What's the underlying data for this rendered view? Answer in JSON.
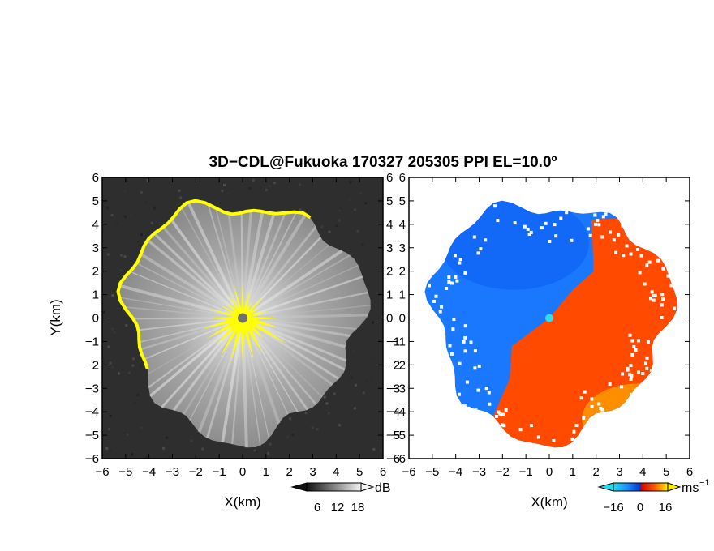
{
  "title": "3D−CDL@Fukuoka 170327 205305 PPI EL=10.0º",
  "chart_data": [
    {
      "type": "heatmap",
      "panel": "reflectivity",
      "xlabel": "X(km)",
      "ylabel": "Y(km)",
      "xlim": [
        -6,
        6
      ],
      "ylim": [
        -6,
        6
      ],
      "x_ticks": [
        "−6",
        "−5",
        "−4",
        "−3",
        "−2",
        "−1",
        "0",
        "1",
        "2",
        "3",
        "4",
        "5",
        "6"
      ],
      "y_ticks": [
        "6",
        "5",
        "4",
        "3",
        "2",
        "1",
        "0",
        "−1",
        "−2",
        "−3",
        "−4",
        "−5",
        "−6"
      ],
      "colorbar": {
        "unit": "dB",
        "ticks": [
          "6",
          "12",
          "18"
        ],
        "range": [
          0,
          24
        ]
      },
      "colors": {
        "background": "#2e2e2e",
        "echo": "#8a8a8a",
        "highlight": "#ffff00",
        "center": "#707070"
      }
    },
    {
      "type": "heatmap",
      "panel": "doppler velocity",
      "xlabel": "X(km)",
      "ylabel": "",
      "xlim": [
        -6,
        6
      ],
      "ylim": [
        -6,
        6
      ],
      "x_ticks": [
        "−6",
        "−5",
        "−4",
        "−3",
        "−2",
        "−1",
        "0",
        "1",
        "2",
        "3",
        "4",
        "5",
        "6"
      ],
      "y_ticks": [
        "6",
        "5",
        "4",
        "3",
        "2",
        "1",
        "0",
        "−1",
        "−2",
        "−3",
        "−4",
        "−5",
        "−6"
      ],
      "colorbar": {
        "unit": "ms",
        "unit_sup": "−1",
        "ticks": [
          "−16",
          "0",
          "16"
        ],
        "range": [
          -24,
          24
        ]
      },
      "colors": {
        "toward": "#1a78ff",
        "away": "#ff4a00",
        "center": "#33ddee"
      }
    }
  ]
}
